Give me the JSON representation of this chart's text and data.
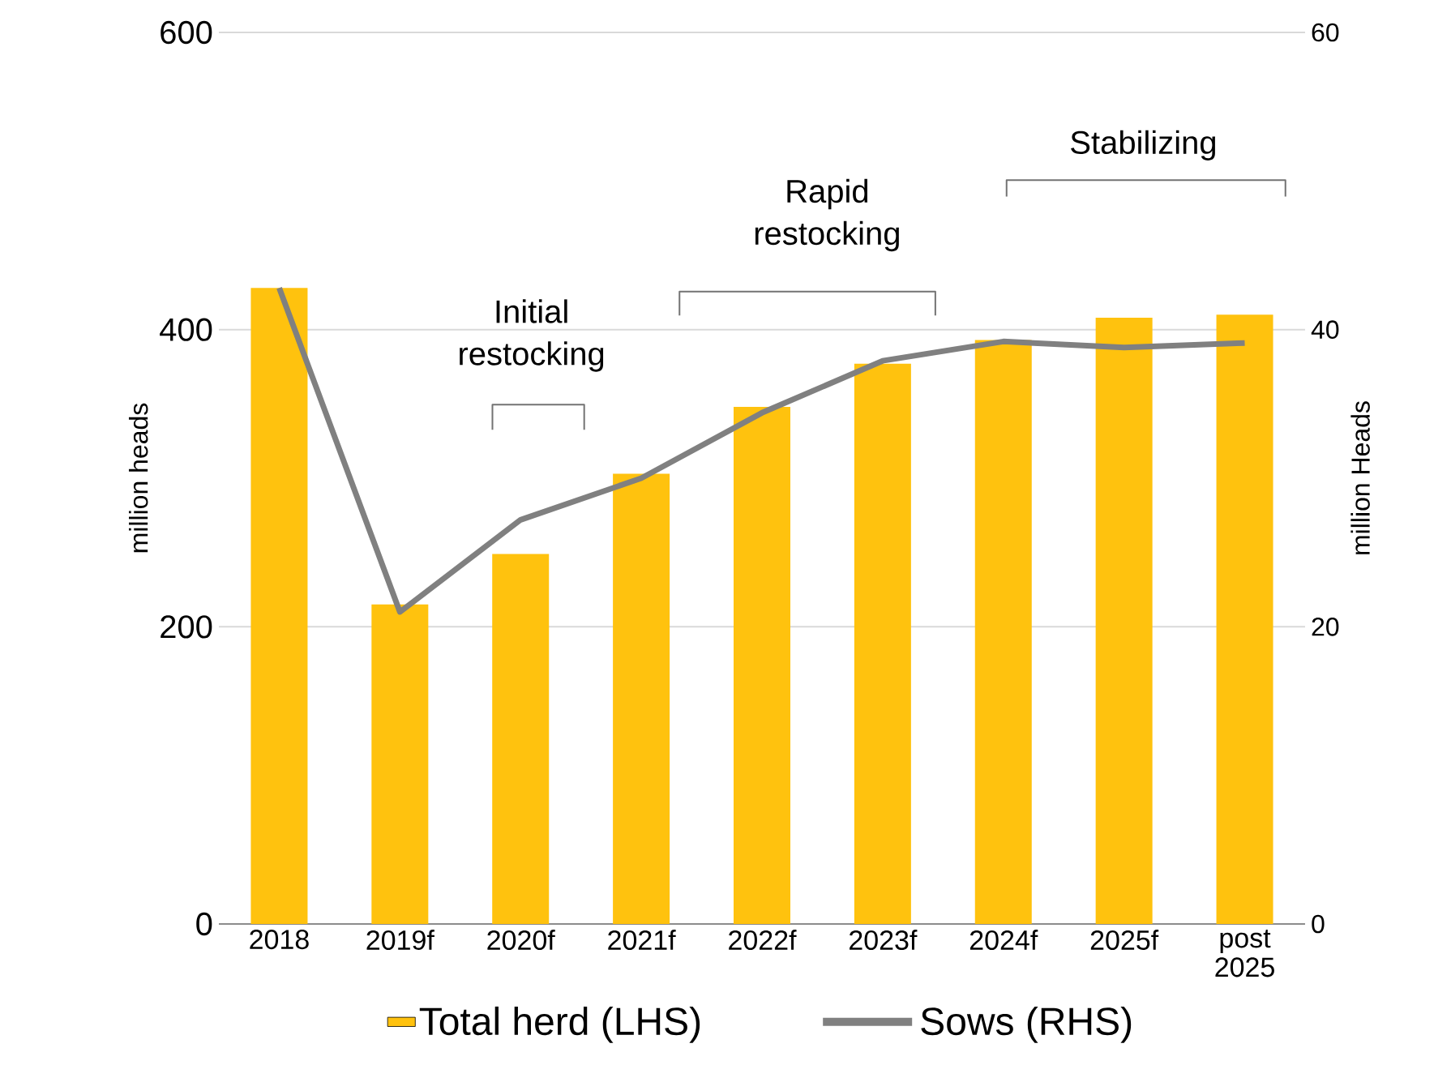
{
  "chart_data": {
    "type": "bar",
    "categories": [
      "2018",
      "2019f",
      "2020f",
      "2021f",
      "2022f",
      "2023f",
      "2024f",
      "2025f",
      "post 2025"
    ],
    "series": [
      {
        "name": "Total herd (LHS)",
        "color": "#ffc20e",
        "values": [
          428,
          215,
          249,
          303,
          348,
          377,
          393,
          408,
          410
        ]
      },
      {
        "name": "Sows (RHS)",
        "type": "line",
        "color": "#808080",
        "axis": "y2",
        "values": [
          42.8,
          21.0,
          27.2,
          30.0,
          34.4,
          37.9,
          39.2,
          38.8,
          39.1
        ]
      }
    ],
    "ylim": [
      0,
      600
    ],
    "yticks": [
      0,
      200,
      400,
      600
    ],
    "y2lim": [
      0,
      60
    ],
    "y2ticks": [
      0,
      20,
      40,
      60
    ],
    "ylabel": "million heads",
    "y2label": "million Heads",
    "grid": "y",
    "legend": "bottom",
    "annotations": [
      "Initial restocking",
      "Rapid restocking",
      "Stabilizing"
    ]
  }
}
